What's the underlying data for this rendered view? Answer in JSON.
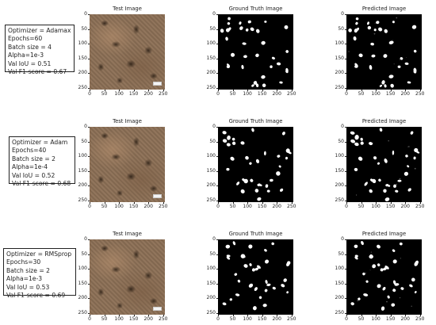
{
  "panel_titles": {
    "test": "Test Image",
    "ground_truth": "Ground Truth Image",
    "predicted": "Predicted Image"
  },
  "axis": {
    "y_ticks": [
      "0",
      "50",
      "100",
      "150",
      "200",
      "250"
    ],
    "x_ticks": [
      "0",
      "50",
      "100",
      "150",
      "200",
      "250"
    ],
    "range": [
      0,
      256
    ]
  },
  "rows": [
    {
      "config": [
        "Optimizer = Adamax",
        "Epochs=60",
        "Batch size = 4",
        "Alpha=1e-3",
        "Val IoU = 0.51",
        "Val F1-score = 0.67"
      ]
    },
    {
      "config": [
        "Optimizer = Adam",
        "Epochs=40",
        "Batch size = 2",
        "Alpha=1e-4",
        "Val IoU = 0.52",
        "Val F1-score = 0.68"
      ]
    },
    {
      "config": [
        "Optimizer = RMSprop",
        "Epochs=30",
        "Batch size = 2",
        "Alpha=1e-3",
        "Val IoU = 0.53",
        "Val F1-score = 0.69"
      ]
    }
  ],
  "colors": {
    "mask_background": "#000000",
    "mask_foreground": "#ffffff",
    "frame": "#222222"
  }
}
